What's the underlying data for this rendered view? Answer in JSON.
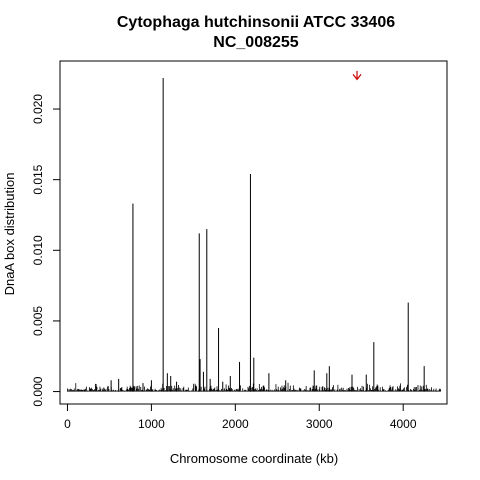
{
  "chart_data": {
    "type": "bar",
    "title": "Cytophaga hutchinsonii ATCC 33406",
    "subtitle": "NC_008255",
    "xlabel": "Chromosome coordinate (kb)",
    "ylabel": "DnaA box distribution",
    "xlim": [
      -89,
      4522
    ],
    "ylim": [
      -0.00088,
      0.0234
    ],
    "x_ticks": [
      0,
      1000,
      2000,
      3000,
      4000
    ],
    "x_tick_labels": [
      "0",
      "1000",
      "2000",
      "3000",
      "4000"
    ],
    "y_ticks": [
      0.0,
      0.005,
      0.01,
      0.015,
      0.02
    ],
    "y_tick_labels": [
      "0.000",
      "0.005",
      "0.010",
      "0.015",
      "0.020"
    ],
    "grid": false,
    "series": [
      {
        "x": [
          780,
          1140,
          1570,
          1660,
          1800,
          2180,
          4060,
          3650,
          2050,
          2220,
          1580,
          1620,
          1190,
          1230,
          1940,
          2400,
          2940,
          3090,
          3120,
          3390,
          3560,
          4250,
          1000,
          1700,
          1850,
          520,
          610,
          900,
          1300,
          2600
        ],
        "values": [
          0.0133,
          0.0222,
          0.0112,
          0.0115,
          0.0045,
          0.0154,
          0.0063,
          0.0035,
          0.0021,
          0.0024,
          0.0023,
          0.0014,
          0.0013,
          0.0011,
          0.0011,
          0.0013,
          0.0015,
          0.0013,
          0.0018,
          0.0012,
          0.0012,
          0.0018,
          0.0008,
          0.0009,
          0.0007,
          0.0008,
          0.0009,
          0.0006,
          0.0007,
          0.0008
        ]
      }
    ],
    "annotations": [
      {
        "type": "arrow",
        "label": "origin marker",
        "x": 3450,
        "y_from": 0.0227,
        "y_to": 0.0221,
        "color": "#cc0000"
      }
    ]
  }
}
